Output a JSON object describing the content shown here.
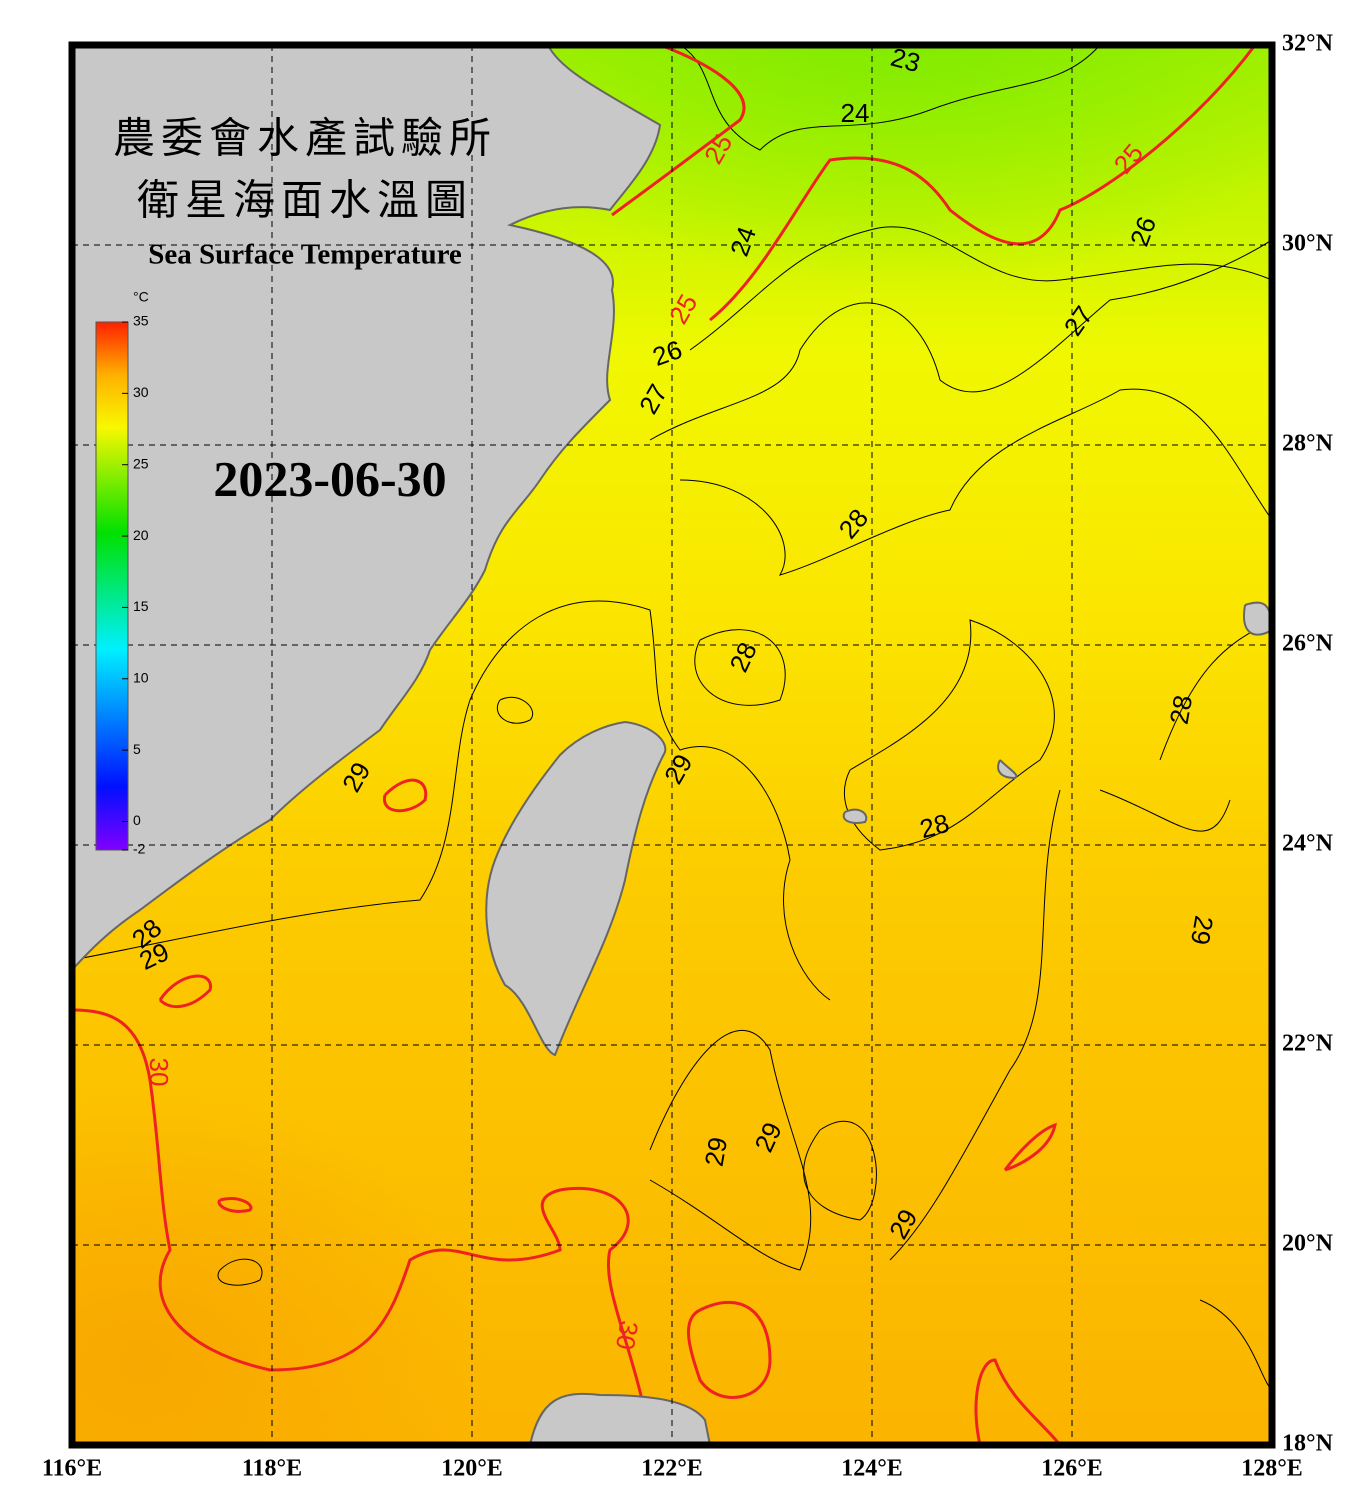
{
  "header": {
    "title_zh": [
      "農委會水產試驗所",
      "衛星海面水溫圖"
    ],
    "title_en": "Sea Surface Temperature",
    "date": "2023-06-30"
  },
  "colorbar": {
    "unit": "°C",
    "range": [
      -2,
      35
    ],
    "ticks": [
      35,
      30,
      25,
      20,
      15,
      10,
      5,
      0,
      -2
    ]
  },
  "axes": {
    "xlim": [
      116,
      128
    ],
    "ylim": [
      18,
      32
    ],
    "xticks": [
      {
        "value": 116,
        "label": "116°E"
      },
      {
        "value": 118,
        "label": "118°E"
      },
      {
        "value": 120,
        "label": "120°E"
      },
      {
        "value": 122,
        "label": "122°E"
      },
      {
        "value": 124,
        "label": "124°E"
      },
      {
        "value": 126,
        "label": "126°E"
      },
      {
        "value": 128,
        "label": "128°E"
      }
    ],
    "yticks": [
      {
        "value": 32,
        "label": "32°N"
      },
      {
        "value": 30,
        "label": "30°N"
      },
      {
        "value": 28,
        "label": "28°N"
      },
      {
        "value": 26,
        "label": "26°N"
      },
      {
        "value": 24,
        "label": "24°N"
      },
      {
        "value": 22,
        "label": "22°N"
      },
      {
        "value": 20,
        "label": "20°N"
      },
      {
        "value": 18,
        "label": "18°N"
      }
    ],
    "grid": true
  },
  "contours": {
    "labels": [
      23,
      24,
      25,
      25,
      26,
      24,
      25,
      26,
      27,
      27,
      28,
      28,
      28,
      29,
      29,
      28,
      29,
      28,
      29,
      30,
      29,
      29,
      29,
      30
    ]
  }
}
